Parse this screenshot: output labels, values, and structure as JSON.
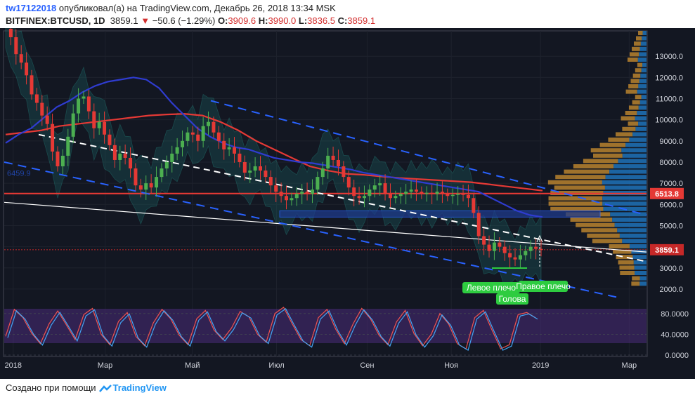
{
  "header": {
    "username": "tw17122018",
    "published_text": "опубликовал(а) на TradingView.com, Декабрь 26, 2018 13:34 MSK",
    "symbol": "BITFINEX:BTCUSD, 1D",
    "last": "3859.1",
    "change_arrow": "▼",
    "change": "−50.6 (−1.29%)",
    "o_label": "O:",
    "o": "3909.6",
    "h_label": "H:",
    "h": "3990.0",
    "l_label": "L:",
    "l": "3836.5",
    "c_label": "C:",
    "c": "3859.1"
  },
  "footer": {
    "created_with": "Создано при помощи",
    "brand": "TradingView"
  },
  "chart_data": [
    {
      "type": "line",
      "title": "",
      "xlabel": "",
      "ylabel": "",
      "x_ticks": [
        "2018",
        "Мар",
        "Май",
        "Июл",
        "Сен",
        "Ноя",
        "2019",
        "Мар"
      ],
      "y_ticks": [
        "2000.0",
        "3000.0",
        "4000.0",
        "5000.0",
        "6000.0",
        "7000.0",
        "8000.0",
        "9000.0",
        "10000.0",
        "11000.0",
        "12000.0",
        "13000.0"
      ],
      "ylim": [
        1600,
        14200
      ],
      "price_badges": [
        {
          "label": "6513.8",
          "value": 6513.8,
          "color": "#e53935"
        },
        {
          "label": "3859.1",
          "value": 3859.1,
          "color": "#c62828"
        }
      ],
      "annotations": [
        "Левое плечо",
        "Правое плечо",
        "Голова"
      ],
      "faded_text": "6459.9",
      "colors": {
        "up": "#4caf50",
        "down": "#e53935",
        "ma_red": "#e53935",
        "ma_blue": "#2f3cd0",
        "trend_white": "#ffffff",
        "channel_blue": "#2962ff",
        "volume_profile_a": "#b8822e",
        "volume_profile_b": "#1e6db0",
        "background": "#131722"
      },
      "series": [
        {
          "values": [
            14300,
            13900,
            13100,
            12700,
            12100,
            11200,
            10800,
            10200,
            9800,
            8500,
            7800,
            8300,
            9200,
            10300,
            11000,
            11100,
            10400,
            9600,
            9900,
            9300,
            8800,
            8100,
            8400,
            8200,
            7700,
            6900,
            6700,
            7000,
            6800,
            7300,
            7700,
            8000,
            8400,
            8700,
            9000,
            9400,
            9300,
            9000,
            9700,
            9900,
            9400,
            9000,
            8600,
            8700,
            8400,
            8000,
            7500,
            7600,
            7800,
            7600,
            7300,
            6900,
            6600,
            6400,
            6200,
            6300,
            6500,
            6600,
            6500,
            6700,
            7300,
            7700,
            8300,
            8100,
            7800,
            7300,
            6800,
            6400,
            6300,
            6400,
            6700,
            6900,
            7000,
            6500,
            6300,
            6400,
            6500,
            6600,
            6700,
            6600,
            6500,
            6550,
            6500,
            6600,
            6500,
            6400,
            6450,
            6500,
            6450,
            6300,
            5600,
            4500,
            4100,
            3800,
            4200,
            4000,
            3700,
            3500,
            3400,
            3600,
            3800,
            4000,
            3900,
            3860
          ]
        },
        {
          "values": [
            9300,
            9400,
            9500,
            9700,
            9800,
            9900,
            10000,
            10100,
            10200,
            10250,
            10280,
            10200,
            9900,
            9500,
            9000,
            8600,
            8200,
            7800,
            7600,
            7450,
            7400,
            7320,
            7250,
            7200,
            7150,
            7100,
            7050,
            6950,
            6850,
            6750,
            6650
          ]
        },
        {
          "values": [
            8900,
            9300,
            9600,
            10100,
            10600,
            10900,
            11300,
            11600,
            11800,
            11900,
            12000,
            11900,
            11500,
            10800,
            10200,
            9600,
            9200,
            8900,
            8700,
            8600,
            8400,
            8200,
            8100,
            8000,
            7950,
            7850,
            7750,
            7650,
            7500,
            7400,
            7300,
            7200,
            7100,
            7000,
            6900,
            6800,
            6700,
            6600,
            6300,
            6000,
            5700,
            5500,
            5400
          ]
        },
        {
          "values": [
            36,
            88,
            72,
            42,
            22,
            60,
            85,
            58,
            30,
            78,
            90,
            40,
            20,
            65,
            82,
            36,
            18,
            62,
            88,
            70,
            38,
            20,
            70,
            86,
            48,
            30,
            52,
            84,
            74,
            40,
            25,
            80,
            92,
            60,
            30,
            18,
            72,
            88,
            50,
            22,
            60,
            90,
            70,
            38,
            20,
            64,
            86,
            42,
            18,
            40,
            80,
            60,
            22,
            12,
            72,
            86,
            48,
            12,
            20,
            78,
            82,
            72
          ]
        }
      ]
    }
  ]
}
